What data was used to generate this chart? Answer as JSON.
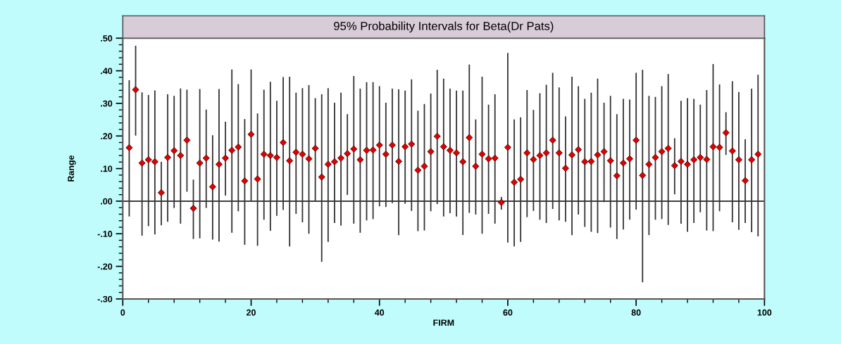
{
  "chart_data": {
    "type": "scatter",
    "title": "95% Probability Intervals for Beta(Dr Pats)",
    "xlabel": "FIRM",
    "ylabel": "Range",
    "x": [
      1,
      2,
      3,
      4,
      5,
      6,
      7,
      8,
      9,
      10,
      11,
      12,
      13,
      14,
      15,
      16,
      17,
      18,
      19,
      20,
      21,
      22,
      23,
      24,
      25,
      26,
      27,
      28,
      29,
      30,
      31,
      32,
      33,
      34,
      35,
      36,
      37,
      38,
      39,
      40,
      41,
      42,
      43,
      44,
      45,
      46,
      47,
      48,
      49,
      50,
      51,
      52,
      53,
      54,
      55,
      56,
      57,
      58,
      59,
      60,
      61,
      62,
      63,
      64,
      65,
      66,
      67,
      68,
      69,
      70,
      71,
      72,
      73,
      74,
      75,
      76,
      77,
      78,
      79,
      80,
      81,
      82,
      83,
      84,
      85,
      86,
      87,
      88,
      89,
      90,
      91,
      92,
      93,
      94,
      95,
      96,
      97,
      98,
      99
    ],
    "series": [
      {
        "color": "#e00000",
        "values": [
          0.164,
          0.342,
          0.117,
          0.127,
          0.121,
          0.026,
          0.134,
          0.155,
          0.14,
          0.187,
          -0.022,
          0.117,
          0.132,
          0.044,
          0.113,
          0.132,
          0.156,
          0.166,
          0.062,
          0.205,
          0.068,
          0.144,
          0.14,
          0.134,
          0.18,
          0.124,
          0.15,
          0.144,
          0.13,
          0.162,
          0.074,
          0.113,
          0.121,
          0.132,
          0.146,
          0.16,
          0.127,
          0.156,
          0.157,
          0.172,
          0.144,
          0.172,
          0.122,
          0.167,
          0.175,
          0.095,
          0.107,
          0.152,
          0.199,
          0.167,
          0.156,
          0.148,
          0.121,
          0.195,
          0.107,
          0.144,
          0.13,
          0.132,
          -0.004,
          0.165,
          0.058,
          0.067,
          0.148,
          0.128,
          0.14,
          0.148,
          0.187,
          0.148,
          0.101,
          0.142,
          0.158,
          0.121,
          0.122,
          0.142,
          0.152,
          0.124,
          0.078,
          0.117,
          0.13,
          0.187,
          0.079,
          0.113,
          0.134,
          0.152,
          0.162,
          0.109,
          0.122,
          0.113,
          0.127,
          0.134,
          0.128,
          0.167,
          0.165,
          0.21,
          0.154,
          0.127,
          0.063,
          0.127,
          0.144
        ],
        "errors": [
          [
            -0.047,
            0.371
          ],
          [
            0.201,
            0.477
          ],
          [
            -0.106,
            0.334
          ],
          [
            -0.077,
            0.326
          ],
          [
            -0.102,
            0.34
          ],
          [
            -0.074,
            0.121
          ],
          [
            -0.063,
            0.328
          ],
          [
            -0.021,
            0.323
          ],
          [
            -0.069,
            0.346
          ],
          [
            0.029,
            0.342
          ],
          [
            -0.116,
            0.066
          ],
          [
            -0.114,
            0.344
          ],
          [
            -0.021,
            0.281
          ],
          [
            -0.118,
            0.202
          ],
          [
            -0.124,
            0.344
          ],
          [
            0.017,
            0.244
          ],
          [
            -0.097,
            0.404
          ],
          [
            -0.031,
            0.359
          ],
          [
            -0.134,
            0.252
          ],
          [
            0.0,
            0.404
          ],
          [
            -0.137,
            0.269
          ],
          [
            -0.057,
            0.342
          ],
          [
            -0.091,
            0.366
          ],
          [
            -0.045,
            0.308
          ],
          [
            -0.027,
            0.381
          ],
          [
            -0.139,
            0.382
          ],
          [
            -0.039,
            0.333
          ],
          [
            -0.065,
            0.347
          ],
          [
            -0.1,
            0.356
          ],
          [
            0.0,
            0.316
          ],
          [
            -0.186,
            0.328
          ],
          [
            -0.125,
            0.347
          ],
          [
            -0.067,
            0.302
          ],
          [
            -0.075,
            0.333
          ],
          [
            0.019,
            0.267
          ],
          [
            -0.069,
            0.384
          ],
          [
            -0.097,
            0.345
          ],
          [
            -0.059,
            0.365
          ],
          [
            -0.055,
            0.365
          ],
          [
            -0.016,
            0.353
          ],
          [
            -0.018,
            0.302
          ],
          [
            -0.006,
            0.345
          ],
          [
            -0.104,
            0.343
          ],
          [
            -0.008,
            0.339
          ],
          [
            -0.03,
            0.374
          ],
          [
            -0.092,
            0.278
          ],
          [
            -0.09,
            0.298
          ],
          [
            -0.031,
            0.33
          ],
          [
            -0.009,
            0.403
          ],
          [
            -0.047,
            0.376
          ],
          [
            -0.037,
            0.345
          ],
          [
            -0.047,
            0.339
          ],
          [
            -0.104,
            0.339
          ],
          [
            -0.036,
            0.419
          ],
          [
            -0.041,
            0.251
          ],
          [
            -0.1,
            0.382
          ],
          [
            -0.039,
            0.296
          ],
          [
            -0.069,
            0.328
          ],
          [
            -0.026,
            0.013
          ],
          [
            -0.127,
            0.455
          ],
          [
            -0.139,
            0.251
          ],
          [
            -0.125,
            0.257
          ],
          [
            -0.049,
            0.341
          ],
          [
            -0.03,
            0.28
          ],
          [
            -0.057,
            0.331
          ],
          [
            -0.067,
            0.357
          ],
          [
            -0.024,
            0.394
          ],
          [
            -0.059,
            0.349
          ],
          [
            -0.063,
            0.26
          ],
          [
            -0.104,
            0.382
          ],
          [
            -0.041,
            0.353
          ],
          [
            -0.079,
            0.314
          ],
          [
            -0.094,
            0.333
          ],
          [
            -0.098,
            0.376
          ],
          [
            -0.003,
            0.302
          ],
          [
            -0.081,
            0.323
          ],
          [
            -0.116,
            0.267
          ],
          [
            -0.087,
            0.314
          ],
          [
            -0.057,
            0.312
          ],
          [
            -0.026,
            0.394
          ],
          [
            -0.249,
            0.403
          ],
          [
            -0.104,
            0.323
          ],
          [
            -0.057,
            0.32
          ],
          [
            -0.055,
            0.353
          ],
          [
            -0.073,
            0.39
          ],
          [
            0.021,
            0.193
          ],
          [
            -0.069,
            0.308
          ],
          [
            -0.094,
            0.316
          ],
          [
            -0.067,
            0.314
          ],
          [
            -0.034,
            0.296
          ],
          [
            -0.09,
            0.341
          ],
          [
            -0.092,
            0.421
          ],
          [
            -0.031,
            0.358
          ],
          [
            0.142,
            0.273
          ],
          [
            -0.065,
            0.368
          ],
          [
            -0.088,
            0.335
          ],
          [
            -0.067,
            0.19
          ],
          [
            -0.095,
            0.345
          ],
          [
            -0.108,
            0.388
          ]
        ]
      }
    ],
    "xlim": [
      0,
      100
    ],
    "xticks": [
      0,
      20,
      40,
      60,
      80,
      100
    ],
    "ylim": [
      -0.3,
      0.5
    ],
    "yticks": [
      {
        "value": -0.3,
        "label": "-.30"
      },
      {
        "value": -0.2,
        "label": "-.20"
      },
      {
        "value": -0.1,
        "label": "-.10"
      },
      {
        "value": 0,
        "label": ".00"
      },
      {
        "value": 0.1,
        "label": ".10"
      },
      {
        "value": 0.2,
        "label": ".20"
      },
      {
        "value": 0.3,
        "label": ".30"
      },
      {
        "value": 0.4,
        "label": ".40"
      },
      {
        "value": 0.5,
        "label": ".50"
      }
    ],
    "ref_lines": [
      {
        "axis": "y",
        "value": 0,
        "color": "#000000"
      }
    ],
    "marker": "diamond",
    "grid": false,
    "legend": false
  }
}
